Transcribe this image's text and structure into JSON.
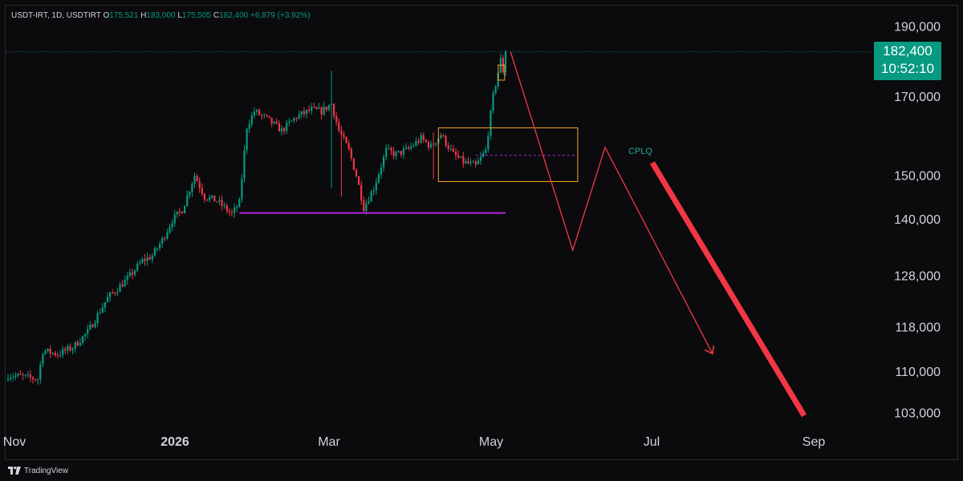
{
  "header": {
    "symbol": "USDT-IRT, 1D, USDTIRT",
    "o_label": "O",
    "o_value": "175,521",
    "h_label": "H",
    "h_value": "183,000",
    "l_label": "L",
    "l_value": "175,505",
    "c_label": "C",
    "c_value": "182,400",
    "change": "+6,879 (+3.92%)"
  },
  "price_tag": {
    "price": "182,400",
    "countdown": "10:52:10"
  },
  "annotation": {
    "label": "CPLQ"
  },
  "footer": {
    "brand": "TradingView"
  },
  "colors": {
    "up": "#089981",
    "down": "#f23645",
    "accent_orange": "#f7a21b",
    "accent_purple": "#b026d6",
    "background": "#0b0b0d"
  },
  "chart_data": {
    "type": "candlestick",
    "symbol": "USDT-IRT",
    "timeframe": "1D",
    "y_scale": "log",
    "ylim": [
      101000,
      196000
    ],
    "y_ticks": [
      190000,
      170000,
      150000,
      140000,
      128000,
      118000,
      110000,
      103000
    ],
    "y_tick_labels": [
      "190,000",
      "170,000",
      "150,000",
      "140,000",
      "128,000",
      "118,000",
      "110,000",
      "103,000"
    ],
    "x_ticks": [
      "Nov",
      "2026",
      "Mar",
      "May",
      "Jul",
      "Sep"
    ],
    "last_price": 182400,
    "close_path": [
      {
        "x": 0,
        "y": 109300
      },
      {
        "x": 6,
        "y": 109000
      },
      {
        "x": 12,
        "y": 108600
      },
      {
        "x": 14,
        "y": 113600
      },
      {
        "x": 20,
        "y": 113000
      },
      {
        "x": 26,
        "y": 114200
      },
      {
        "x": 32,
        "y": 117000
      },
      {
        "x": 40,
        "y": 123500
      },
      {
        "x": 48,
        "y": 127300
      },
      {
        "x": 54,
        "y": 131000
      },
      {
        "x": 58,
        "y": 132000
      },
      {
        "x": 62,
        "y": 135400
      },
      {
        "x": 66,
        "y": 139700
      },
      {
        "x": 70,
        "y": 142000
      },
      {
        "x": 75,
        "y": 150000
      },
      {
        "x": 79,
        "y": 145000
      },
      {
        "x": 84,
        "y": 144000
      },
      {
        "x": 90,
        "y": 141000
      },
      {
        "x": 93,
        "y": 143600
      },
      {
        "x": 96,
        "y": 162000
      },
      {
        "x": 99,
        "y": 166000
      },
      {
        "x": 104,
        "y": 164000
      },
      {
        "x": 110,
        "y": 161000
      },
      {
        "x": 116,
        "y": 164600
      },
      {
        "x": 122,
        "y": 166400
      },
      {
        "x": 126,
        "y": 166000
      },
      {
        "x": 130,
        "y": 168000
      },
      {
        "x": 133,
        "y": 161000
      },
      {
        "x": 137,
        "y": 156000
      },
      {
        "x": 140,
        "y": 150000
      },
      {
        "x": 143,
        "y": 142500
      },
      {
        "x": 147,
        "y": 147000
      },
      {
        "x": 152,
        "y": 156000
      },
      {
        "x": 156,
        "y": 155000
      },
      {
        "x": 161,
        "y": 156400
      },
      {
        "x": 166,
        "y": 159000
      },
      {
        "x": 170,
        "y": 157000
      },
      {
        "x": 174,
        "y": 160000
      },
      {
        "x": 179,
        "y": 155000
      },
      {
        "x": 183,
        "y": 153200
      },
      {
        "x": 188,
        "y": 152200
      },
      {
        "x": 192,
        "y": 156000
      },
      {
        "x": 195,
        "y": 170000
      },
      {
        "x": 198,
        "y": 180000
      },
      {
        "x": 199,
        "y": 177000
      },
      {
        "x": 200,
        "y": 182400
      }
    ],
    "spikes": [
      {
        "x": 130,
        "high": 177000,
        "low": 147000
      },
      {
        "x": 134,
        "high": 150000,
        "low": 145000
      },
      {
        "x": 171,
        "high": 160600,
        "low": 149000
      }
    ],
    "support_line": {
      "price": 141300,
      "x_start": 93,
      "x_end": 200
    },
    "zone": {
      "top": 161700,
      "bottom": 148500,
      "x_start": 173,
      "x_end": 229,
      "mid": 154800
    },
    "forecast_path": [
      {
        "x": 202,
        "y": 182400
      },
      {
        "x": 227,
        "y": 133200
      },
      {
        "x": 240,
        "y": 156800
      },
      {
        "x": 283,
        "y": 113200
      }
    ],
    "arrow_thick": [
      {
        "x": 259,
        "y": 153000
      },
      {
        "x": 320,
        "y": 102500
      }
    ]
  }
}
